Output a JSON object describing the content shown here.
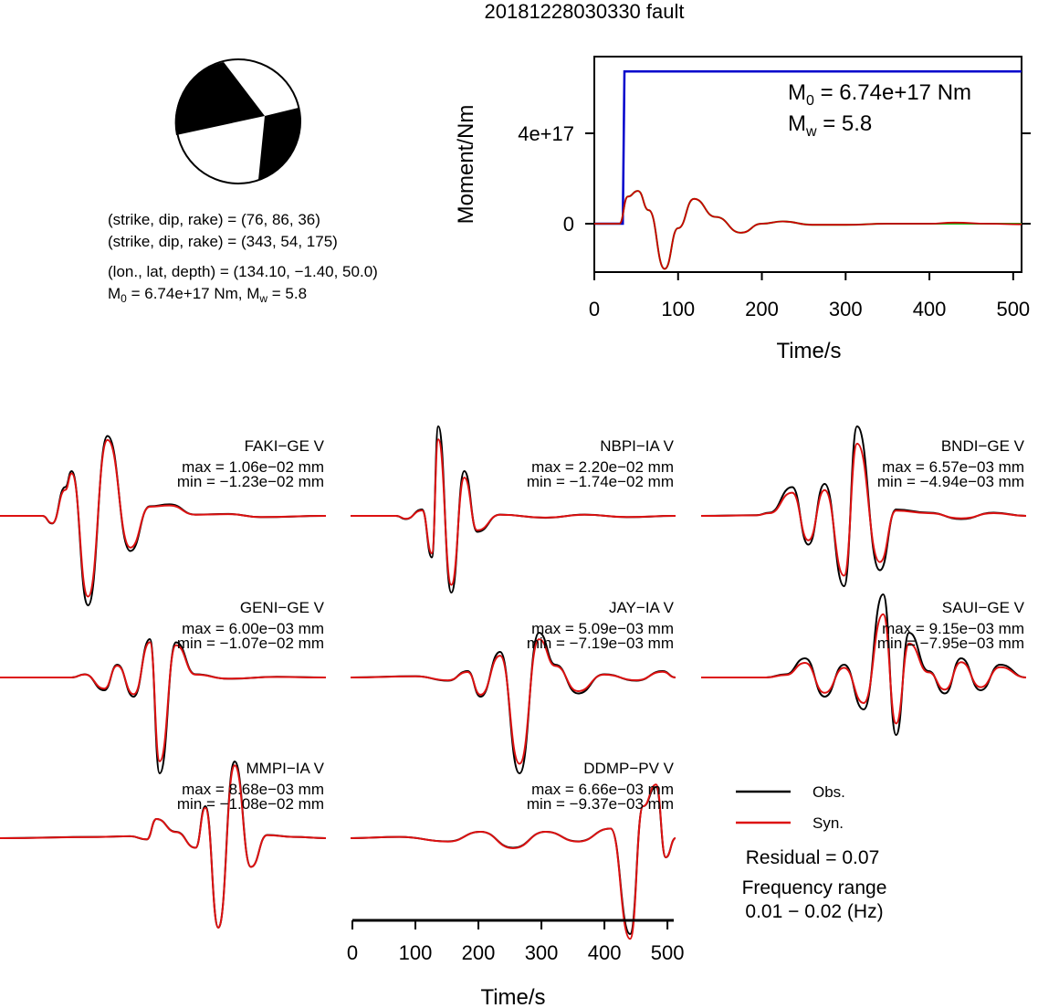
{
  "title": "20181228030330 fault",
  "mechanism": {
    "plane1": "(strike, dip, rake) = (76, 86, 36)",
    "plane2": "(strike, dip, rake) = (343, 54, 175)",
    "location": "(lon., lat, depth) = (134.10, −1.40, 50.0)",
    "m0_prefix": "M",
    "m0_sub": "0",
    "m0_rest": " = 6.74e+17 Nm, M",
    "mw_sub": "w",
    "mw_rest": " = 5.8"
  },
  "moment_chart": {
    "ylabel": "Moment/Nm",
    "xlabel": "Time/s",
    "yticks": [
      "0",
      "4e+17"
    ],
    "xticks": [
      "0",
      "100",
      "200",
      "300",
      "400",
      "500"
    ],
    "m0_main": "M",
    "m0_sub": "0",
    "m0_value": " = 6.74e+17 Nm",
    "mw_main": "M",
    "mw_sub": "w",
    "mw_value": " = 5.8",
    "colors": {
      "cumulative": "#0000cc",
      "rate_obs": "#cc0000",
      "rate_syn": "#22bb22"
    }
  },
  "waveforms": {
    "xlabel": "Time/s",
    "xticks": [
      "0",
      "100",
      "200",
      "300",
      "400",
      "500"
    ],
    "legend": {
      "obs": "Obs.",
      "syn": "Syn."
    },
    "residual": "Residual = 0.07",
    "freq_label": "Frequency range",
    "freq_value": "0.01 − 0.02 (Hz)",
    "colors": {
      "obs": "#000000",
      "syn": "#dd1111"
    }
  },
  "stations": [
    {
      "name": "FAKI−GE V",
      "max": "max = 1.06e−02 mm",
      "min": "min = −1.23e−02 mm"
    },
    {
      "name": "NBPI−IA V",
      "max": "max = 2.20e−02 mm",
      "min": "min = −1.74e−02 mm"
    },
    {
      "name": "BNDI−GE V",
      "max": "max = 6.57e−03 mm",
      "min": "min = −4.94e−03 mm"
    },
    {
      "name": "GENI−GE V",
      "max": "max = 6.00e−03 mm",
      "min": "min = −1.07e−02 mm"
    },
    {
      "name": "JAY−IA V",
      "max": "max = 5.09e−03 mm",
      "min": "min = −7.19e−03 mm"
    },
    {
      "name": "SAUI−GE V",
      "max": "max = 9.15e−03 mm",
      "min": "min = −7.95e−03 mm"
    },
    {
      "name": "MMPI−IA V",
      "max": "max = 8.68e−03 mm",
      "min": "min = −1.08e−02 mm"
    },
    {
      "name": "DDMP−PV V",
      "max": "max = 6.66e−03 mm",
      "min": "min = −9.37e−03 mm"
    }
  ],
  "chart_data": [
    {
      "type": "line",
      "xlabel": "Time/s",
      "ylabel": "Moment/Nm",
      "xlim": [
        0,
        510
      ],
      "yticks_values": [
        0,
        4e+17
      ],
      "series": [
        {
          "x": [
            0,
            34,
            36,
            510
          ],
          "y": [
            0,
            0,
            6.74e+17,
            6.74e+17
          ]
        },
        {
          "x": [
            0,
            30,
            40,
            52,
            65,
            84,
            100,
            119,
            145,
            175,
            200,
            225,
            260,
            300,
            350,
            400,
            430,
            470,
            510
          ],
          "y": [
            0,
            0,
            1.2e+17,
            1.45e+17,
            6e+16,
            -2e+17,
            -2e+16,
            1.1e+17,
            3e+16,
            -4e+16,
            0,
            1e+16,
            -5000000000000000.0,
            -5000000000000000.0,
            0,
            0,
            5000000000000000.0,
            0,
            -3000000000000000.0
          ]
        }
      ]
    },
    {
      "type": "line",
      "xlabel": "Time/s",
      "xlim": [
        0,
        510
      ],
      "series": [
        {
          "name": "Obs."
        },
        {
          "name": "Syn."
        }
      ]
    }
  ]
}
